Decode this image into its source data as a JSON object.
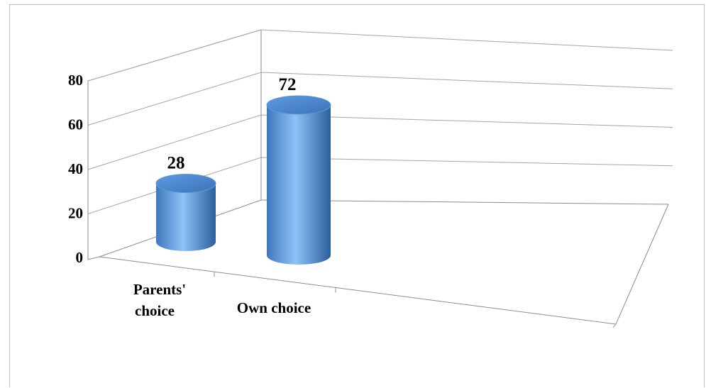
{
  "chart_data": {
    "type": "bar",
    "style": "3d-cylinder",
    "categories": [
      "Parents' choice",
      "Own choice"
    ],
    "values": [
      28,
      72
    ],
    "data_labels": [
      "28",
      "72"
    ],
    "ylim": [
      0,
      80
    ],
    "yticks": [
      "0",
      "20",
      "40",
      "60",
      "80"
    ],
    "grid": true,
    "legend": "none",
    "colors": {
      "bar": "#4f8fd9",
      "bar_light": "#8ec2f5",
      "bar_dark": "#2a5f9e",
      "grid": "#a6a6a6"
    }
  }
}
